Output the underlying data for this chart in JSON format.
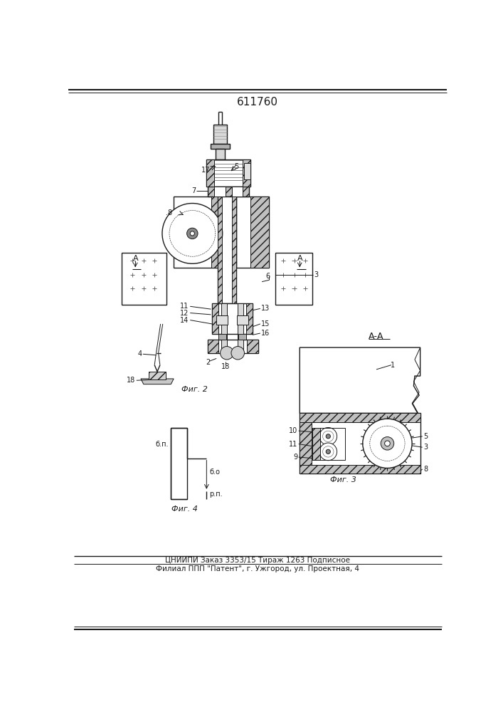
{
  "title": "611760",
  "footer_line1": "ЦНИИПИ Заказ 3353/15 Тираж 1263 Подписное",
  "footer_line2": "Филиал ППП \"Патент\", г. Ужгород, ул. Проектная, 4",
  "fig2_label": "Фиг. 2",
  "fig3_label": "Фиг. 3",
  "fig4_label": "Фиг. 4",
  "aa_label": "А-А",
  "bg_color": "#ffffff",
  "line_color": "#1a1a1a"
}
